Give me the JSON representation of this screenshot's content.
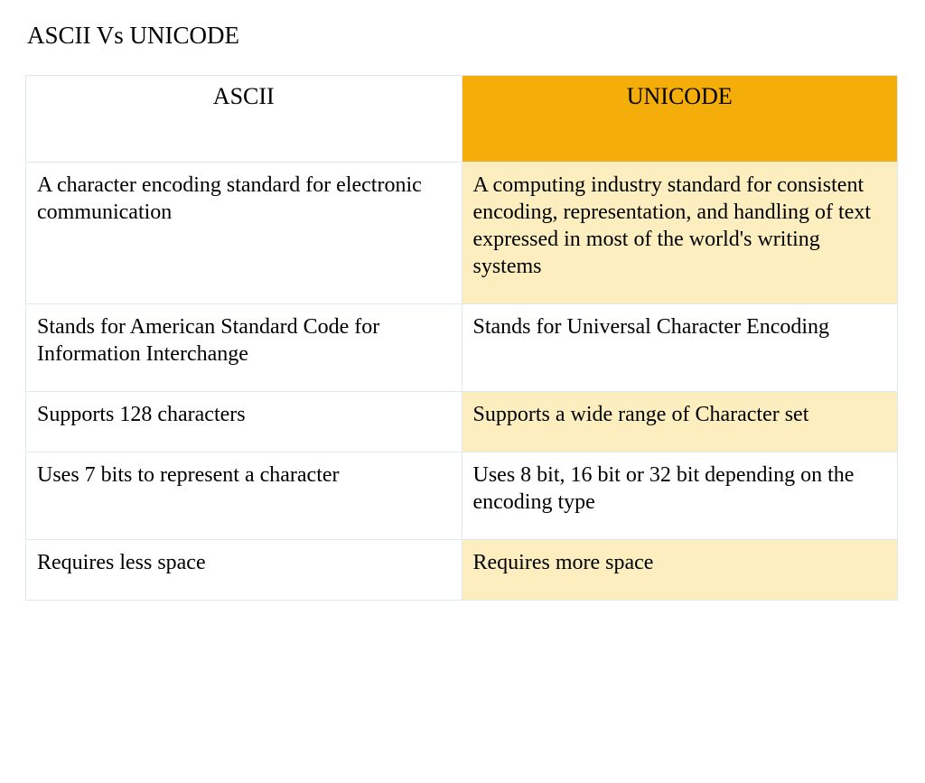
{
  "title": "ASCII  Vs UNICODE",
  "table": {
    "columns": [
      "ASCII",
      "UNICODE"
    ],
    "header_styles": [
      {
        "background": "#ffffff",
        "color": "#000000"
      },
      {
        "background": "#f5ae09",
        "color": "#000000"
      }
    ],
    "column_body_styles": [
      {
        "background": "#ffffff",
        "color": "#000000"
      },
      {
        "odd_background": "#fceebf",
        "even_background": "#ffffff",
        "color": "#000000"
      }
    ],
    "border_color": "#dfe8ee",
    "font_family": "Times New Roman",
    "title_fontsize": 27,
    "header_fontsize": 26,
    "cell_fontsize": 24,
    "rows": [
      [
        "A character encoding standard for electronic communication",
        "A computing industry standard for consistent encoding, representation, and handling of text\nexpressed in most of the world's writing systems"
      ],
      [
        "Stands for American Standard Code for Information Interchange",
        "Stands for Universal Character Encoding"
      ],
      [
        "Supports 128 characters",
        "Supports a wide range of Character set"
      ],
      [
        "Uses 7 bits to represent a character",
        "Uses 8 bit, 16 bit or 32 bit depending on the encoding type"
      ],
      [
        "Requires less space",
        "Requires more space"
      ]
    ]
  }
}
